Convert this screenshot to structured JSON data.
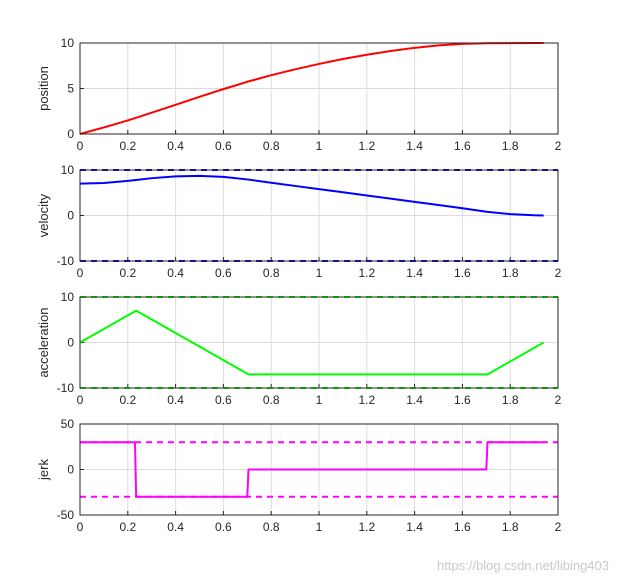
{
  "watermark": "https://blog.csdn.net/libing403",
  "chart_data": [
    {
      "type": "line",
      "ylabel": "position",
      "xlim": [
        0,
        2
      ],
      "ylim": [
        0,
        10
      ],
      "xticks": [
        "0",
        "0.2",
        "0.4",
        "0.6",
        "0.8",
        "1",
        "1.2",
        "1.4",
        "1.6",
        "1.8",
        "2"
      ],
      "yticks": [
        "0",
        "5",
        "10"
      ],
      "grid": true,
      "series": [
        {
          "color": "#ff0000",
          "style": "solid",
          "x": [
            0,
            0.1,
            0.2,
            0.3,
            0.4,
            0.5,
            0.6,
            0.7,
            0.8,
            0.9,
            1.0,
            1.1,
            1.2,
            1.3,
            1.4,
            1.5,
            1.6,
            1.7,
            1.8,
            1.9,
            1.94
          ],
          "y": [
            0,
            0.72,
            1.49,
            2.34,
            3.21,
            4.09,
            4.93,
            5.74,
            6.46,
            7.11,
            7.7,
            8.24,
            8.71,
            9.12,
            9.47,
            9.74,
            9.9,
            9.97,
            9.99,
            10.0,
            10.0
          ]
        }
      ]
    },
    {
      "type": "line",
      "ylabel": "velocity",
      "xlim": [
        0,
        2
      ],
      "ylim": [
        -10,
        10
      ],
      "xticks": [
        "0",
        "0.2",
        "0.4",
        "0.6",
        "0.8",
        "1",
        "1.2",
        "1.4",
        "1.6",
        "1.8",
        "2"
      ],
      "yticks": [
        "-10",
        "0",
        "10"
      ],
      "grid": true,
      "series": [
        {
          "color": "#0000ff",
          "style": "solid",
          "x": [
            0,
            0.1,
            0.2,
            0.235,
            0.3,
            0.4,
            0.5,
            0.6,
            0.705,
            0.8,
            0.9,
            1.0,
            1.1,
            1.2,
            1.3,
            1.4,
            1.5,
            1.6,
            1.705,
            1.8,
            1.9,
            1.94
          ],
          "y": [
            7.0,
            7.15,
            7.6,
            7.8,
            8.2,
            8.6,
            8.7,
            8.5,
            7.9,
            7.2,
            6.5,
            5.8,
            5.1,
            4.4,
            3.7,
            3.0,
            2.3,
            1.6,
            0.8,
            0.3,
            0.05,
            0
          ]
        },
        {
          "color": "#0000ff",
          "style": "dashed",
          "x": [
            0,
            2
          ],
          "y": [
            10,
            10
          ]
        },
        {
          "color": "#0000ff",
          "style": "dashed",
          "x": [
            0,
            2
          ],
          "y": [
            -10,
            -10
          ]
        }
      ]
    },
    {
      "type": "line",
      "ylabel": "acceleration",
      "xlim": [
        0,
        2
      ],
      "ylim": [
        -10,
        10
      ],
      "xticks": [
        "0",
        "0.2",
        "0.4",
        "0.6",
        "0.8",
        "1",
        "1.2",
        "1.4",
        "1.6",
        "1.8",
        "2"
      ],
      "yticks": [
        "-10",
        "0",
        "10"
      ],
      "grid": true,
      "series": [
        {
          "color": "#00ff00",
          "style": "solid",
          "x": [
            0,
            0.235,
            0.705,
            1.705,
            1.94
          ],
          "y": [
            0,
            7,
            -7,
            -7,
            0
          ]
        },
        {
          "color": "#00ff00",
          "style": "dashed",
          "x": [
            0,
            2
          ],
          "y": [
            10,
            10
          ]
        },
        {
          "color": "#00ff00",
          "style": "dashed",
          "x": [
            0,
            2
          ],
          "y": [
            -10,
            -10
          ]
        }
      ]
    },
    {
      "type": "line",
      "ylabel": "jerk",
      "xlim": [
        0,
        2
      ],
      "ylim": [
        -50,
        50
      ],
      "xticks": [
        "0",
        "0.2",
        "0.4",
        "0.6",
        "0.8",
        "1",
        "1.2",
        "1.4",
        "1.6",
        "1.8",
        "2"
      ],
      "yticks": [
        "-50",
        "0",
        "50"
      ],
      "grid": true,
      "series": [
        {
          "color": "#ff00ff",
          "style": "solid",
          "x": [
            0,
            0.23,
            0.235,
            0.7,
            0.705,
            1.7,
            1.705,
            1.94
          ],
          "y": [
            30,
            30,
            -30,
            -30,
            0,
            0,
            30,
            30
          ]
        },
        {
          "color": "#ff00ff",
          "style": "dashed",
          "x": [
            0,
            2
          ],
          "y": [
            30,
            30
          ]
        },
        {
          "color": "#ff00ff",
          "style": "dashed",
          "x": [
            0,
            2
          ],
          "y": [
            -30,
            -30
          ]
        }
      ]
    }
  ]
}
